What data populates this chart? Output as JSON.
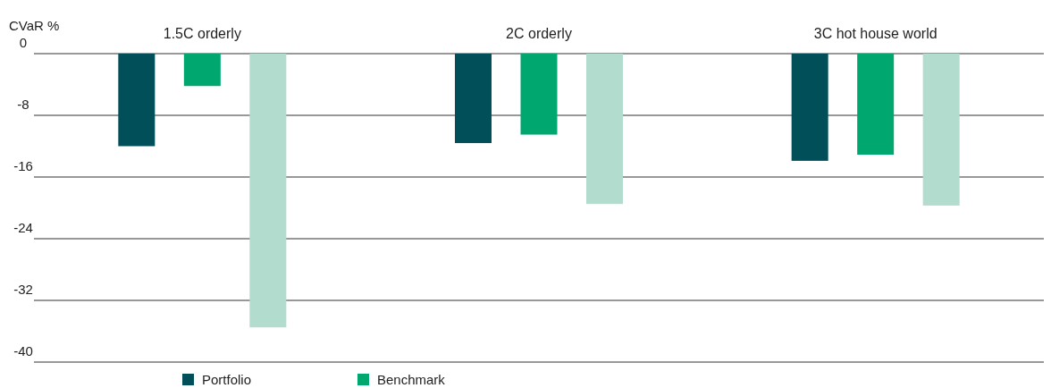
{
  "chart_data": {
    "type": "bar",
    "ylabel": "CVaR %",
    "categories": [
      "1.5C orderly",
      "2C orderly",
      "3C hot house world"
    ],
    "series": [
      {
        "name": "Portfolio",
        "color": "#004f59",
        "values": [
          -12,
          -11.6,
          -13.9
        ]
      },
      {
        "name": "Benchmark",
        "color": "#00a870",
        "values": [
          -4.2,
          -10.5,
          -13.1
        ]
      },
      {
        "color": "#b2dccd",
        "values": [
          -35.5,
          -19.5,
          -19.7
        ]
      }
    ],
    "ylim": [
      -40,
      0
    ],
    "yticks": [
      0,
      -8,
      -16,
      -24,
      -32,
      -40
    ],
    "grid": "y",
    "legend": "bottom"
  }
}
